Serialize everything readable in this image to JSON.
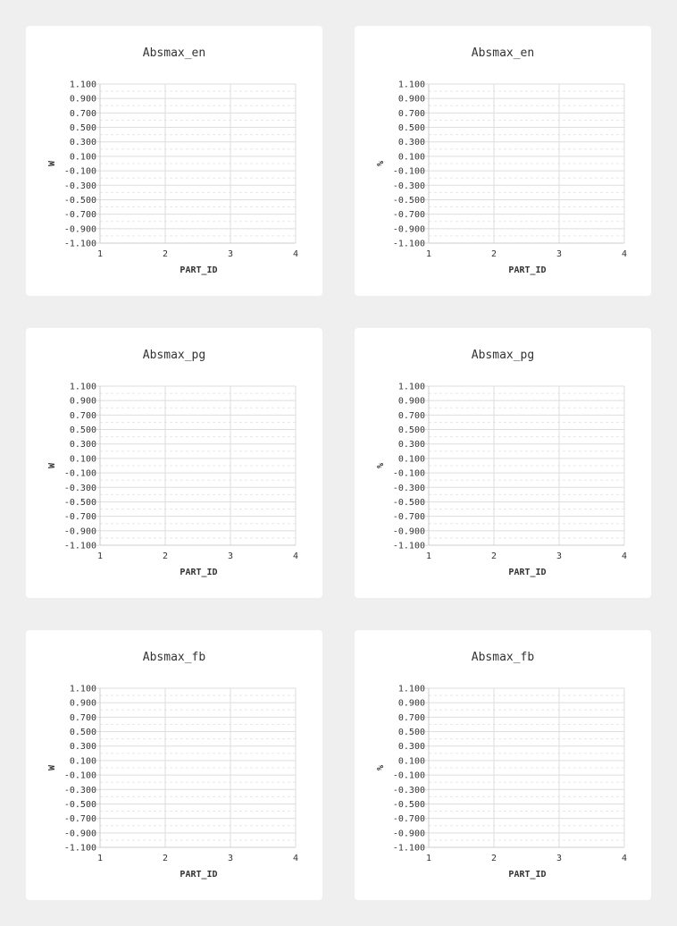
{
  "chart_data": [
    {
      "type": "line",
      "title": "Absmax_en",
      "xlabel": "PART_ID",
      "ylabel": "W",
      "x_ticks": [
        "1",
        "2",
        "3",
        "4"
      ],
      "y_ticks": [
        "1.100",
        "0.900",
        "0.700",
        "0.500",
        "0.300",
        "0.100",
        "-0.100",
        "-0.300",
        "-0.500",
        "-0.700",
        "-0.900",
        "-1.100"
      ],
      "xlim": [
        1,
        4
      ],
      "ylim": [
        -1.1,
        1.1
      ],
      "grid": true,
      "series": []
    },
    {
      "type": "line",
      "title": "Absmax_en",
      "xlabel": "PART_ID",
      "ylabel": "%",
      "x_ticks": [
        "1",
        "2",
        "3",
        "4"
      ],
      "y_ticks": [
        "1.100",
        "0.900",
        "0.700",
        "0.500",
        "0.300",
        "0.100",
        "-0.100",
        "-0.300",
        "-0.500",
        "-0.700",
        "-0.900",
        "-1.100"
      ],
      "xlim": [
        1,
        4
      ],
      "ylim": [
        -1.1,
        1.1
      ],
      "grid": true,
      "series": []
    },
    {
      "type": "line",
      "title": "Absmax_pg",
      "xlabel": "PART_ID",
      "ylabel": "W",
      "x_ticks": [
        "1",
        "2",
        "3",
        "4"
      ],
      "y_ticks": [
        "1.100",
        "0.900",
        "0.700",
        "0.500",
        "0.300",
        "0.100",
        "-0.100",
        "-0.300",
        "-0.500",
        "-0.700",
        "-0.900",
        "-1.100"
      ],
      "xlim": [
        1,
        4
      ],
      "ylim": [
        -1.1,
        1.1
      ],
      "grid": true,
      "series": []
    },
    {
      "type": "line",
      "title": "Absmax_pg",
      "xlabel": "PART_ID",
      "ylabel": "%",
      "x_ticks": [
        "1",
        "2",
        "3",
        "4"
      ],
      "y_ticks": [
        "1.100",
        "0.900",
        "0.700",
        "0.500",
        "0.300",
        "0.100",
        "-0.100",
        "-0.300",
        "-0.500",
        "-0.700",
        "-0.900",
        "-1.100"
      ],
      "xlim": [
        1,
        4
      ],
      "ylim": [
        -1.1,
        1.1
      ],
      "grid": true,
      "series": []
    },
    {
      "type": "line",
      "title": "Absmax_fb",
      "xlabel": "PART_ID",
      "ylabel": "W",
      "x_ticks": [
        "1",
        "2",
        "3",
        "4"
      ],
      "y_ticks": [
        "1.100",
        "0.900",
        "0.700",
        "0.500",
        "0.300",
        "0.100",
        "-0.100",
        "-0.300",
        "-0.500",
        "-0.700",
        "-0.900",
        "-1.100"
      ],
      "xlim": [
        1,
        4
      ],
      "ylim": [
        -1.1,
        1.1
      ],
      "grid": true,
      "series": []
    },
    {
      "type": "line",
      "title": "Absmax_fb",
      "xlabel": "PART_ID",
      "ylabel": "%",
      "x_ticks": [
        "1",
        "2",
        "3",
        "4"
      ],
      "y_ticks": [
        "1.100",
        "0.900",
        "0.700",
        "0.500",
        "0.300",
        "0.100",
        "-0.100",
        "-0.300",
        "-0.500",
        "-0.700",
        "-0.900",
        "-1.100"
      ],
      "xlim": [
        1,
        4
      ],
      "ylim": [
        -1.1,
        1.1
      ],
      "grid": true,
      "series": []
    }
  ],
  "colors": {
    "background": "#efefef",
    "card": "#ffffff",
    "grid_major": "#dddddd",
    "grid_minor": "#e8e8e8",
    "text": "#333333"
  }
}
